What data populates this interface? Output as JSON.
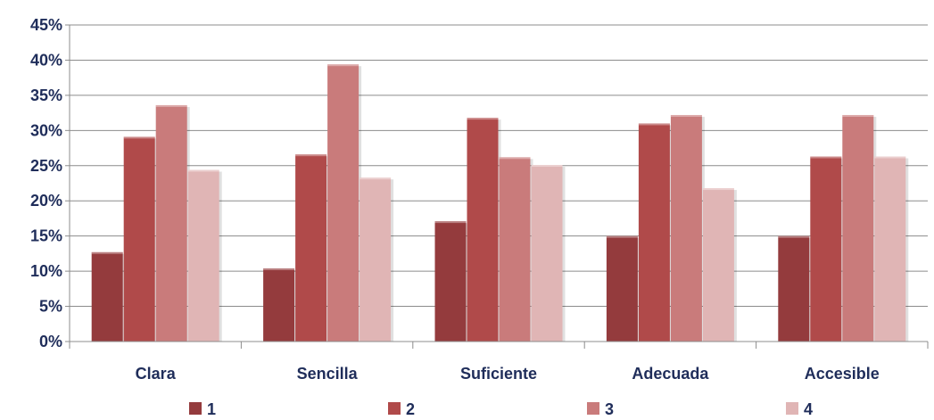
{
  "chart_data": {
    "type": "bar",
    "categories": [
      "Clara",
      "Sencilla",
      "Suficiente",
      "Adecuada",
      "Accesible"
    ],
    "series": [
      {
        "name": "1",
        "color": "#943b3d",
        "values": [
          12.7,
          10.4,
          17.1,
          15.0,
          15.0
        ]
      },
      {
        "name": "2",
        "color": "#b04a4a",
        "values": [
          29.1,
          26.6,
          31.8,
          31.0,
          26.3
        ]
      },
      {
        "name": "3",
        "color": "#c97b7b",
        "values": [
          33.6,
          39.4,
          26.2,
          32.2,
          32.2
        ]
      },
      {
        "name": "4",
        "color": "#e0b5b5",
        "values": [
          24.4,
          23.3,
          25.1,
          21.8,
          26.3
        ]
      }
    ],
    "ylim": [
      0,
      45
    ],
    "yticks": [
      "0%",
      "5%",
      "10%",
      "15%",
      "20%",
      "25%",
      "30%",
      "35%",
      "40%",
      "45%"
    ],
    "grid": true,
    "legend_position": "bottom",
    "label_color": "#1f2d5a"
  }
}
